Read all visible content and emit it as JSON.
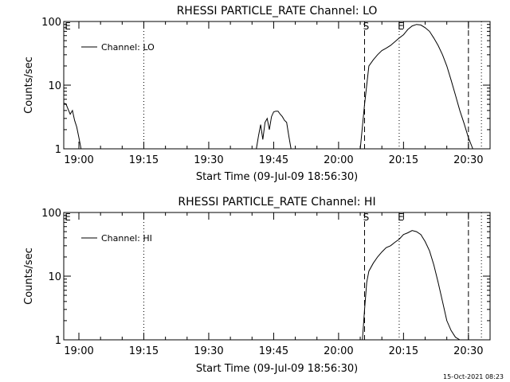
{
  "footer": {
    "stamp": "15-Oct-2021 08:23"
  },
  "chart_data": [
    {
      "type": "line",
      "title": "RHESSI PARTICLE_RATE Channel: LO",
      "xlabel": "Start Time (09-Jul-09 18:56:30)",
      "ylabel": "Counts/sec",
      "yscale": "log",
      "ylim": [
        1,
        100
      ],
      "xlim": [
        "18:56:30",
        "20:35:00"
      ],
      "x_ticks": [
        "19:00",
        "19:15",
        "19:30",
        "19:45",
        "20:00",
        "20:15",
        "20:30"
      ],
      "y_ticks": [
        "1",
        "10",
        "100"
      ],
      "legend": {
        "placement": "top-left",
        "entries": [
          "Channel: LO"
        ]
      },
      "grid": false,
      "markers": [
        {
          "time": "19:15",
          "style": "dotted",
          "label": ""
        },
        {
          "time": "20:06",
          "style": "dashed",
          "label": "S"
        },
        {
          "time": "20:14",
          "style": "dotted",
          "label": "E"
        },
        {
          "time": "20:30",
          "style": "dashed",
          "label": ""
        },
        {
          "time": "20:33",
          "style": "dotted",
          "label": ""
        }
      ],
      "edge_labels": [
        {
          "time": "18:56:30",
          "label": "E"
        }
      ],
      "series": [
        {
          "name": "Channel: LO",
          "segments": [
            {
              "x": [
                "18:56:30",
                "18:57:00",
                "18:57:30",
                "18:58:00",
                "18:58:30",
                "18:59:00",
                "18:59:30",
                "19:00:00",
                "19:00:30"
              ],
              "y": [
                5.2,
                5.1,
                4.2,
                3.5,
                4.0,
                2.8,
                2.2,
                1.5,
                1.0
              ]
            },
            {
              "x": [
                "19:41:00",
                "19:41:30",
                "19:42:00",
                "19:42:30",
                "19:43:00",
                "19:43:30",
                "19:44:00",
                "19:44:30",
                "19:45:00",
                "19:45:30",
                "19:46:00",
                "19:46:30",
                "19:47:00",
                "19:47:30",
                "19:48:00",
                "19:48:30",
                "19:49:00"
              ],
              "y": [
                1.0,
                1.6,
                2.4,
                1.4,
                2.6,
                3.0,
                2.0,
                3.2,
                3.8,
                3.9,
                3.9,
                3.5,
                3.2,
                2.8,
                2.6,
                1.6,
                1.0
              ]
            },
            {
              "x": [
                "20:05:00",
                "20:06:00",
                "20:07:00",
                "20:08:00",
                "20:09:00",
                "20:10:00",
                "20:11:00",
                "20:12:00",
                "20:13:00",
                "20:14:00",
                "20:15:00",
                "20:16:00",
                "20:17:00",
                "20:18:00",
                "20:19:00",
                "20:20:00",
                "20:21:00",
                "20:22:00",
                "20:23:00",
                "20:24:00",
                "20:25:00",
                "20:26:00",
                "20:27:00",
                "20:28:00",
                "20:29:00",
                "20:30:00",
                "20:31:00"
              ],
              "y": [
                1.0,
                5.0,
                20,
                25,
                30,
                35,
                38,
                42,
                48,
                55,
                62,
                75,
                85,
                90,
                88,
                80,
                70,
                55,
                42,
                30,
                20,
                12,
                7,
                4,
                2.5,
                1.5,
                1.0
              ]
            }
          ]
        }
      ]
    },
    {
      "type": "line",
      "title": "RHESSI PARTICLE_RATE Channel: HI",
      "xlabel": "Start Time (09-Jul-09 18:56:30)",
      "ylabel": "Counts/sec",
      "yscale": "log",
      "ylim": [
        1,
        100
      ],
      "xlim": [
        "18:56:30",
        "20:35:00"
      ],
      "x_ticks": [
        "19:00",
        "19:15",
        "19:30",
        "19:45",
        "20:00",
        "20:15",
        "20:30"
      ],
      "y_ticks": [
        "1",
        "10",
        "100"
      ],
      "legend": {
        "placement": "top-left",
        "entries": [
          "Channel: HI"
        ]
      },
      "grid": false,
      "markers": [
        {
          "time": "19:15",
          "style": "dotted",
          "label": ""
        },
        {
          "time": "20:06",
          "style": "dashed",
          "label": "S"
        },
        {
          "time": "20:14",
          "style": "dotted",
          "label": "E"
        },
        {
          "time": "20:30",
          "style": "dashed",
          "label": ""
        },
        {
          "time": "20:33",
          "style": "dotted",
          "label": ""
        }
      ],
      "edge_labels": [
        {
          "time": "18:56:30",
          "label": "E"
        }
      ],
      "series": [
        {
          "name": "Channel: HI",
          "segments": [
            {
              "x": [
                "20:05:30",
                "20:06:00",
                "20:06:30",
                "20:07:00",
                "20:08:00",
                "20:09:00",
                "20:10:00",
                "20:11:00",
                "20:12:00",
                "20:13:00",
                "20:14:00",
                "20:15:00",
                "20:16:00",
                "20:17:00",
                "20:18:00",
                "20:19:00",
                "20:20:00",
                "20:21:00",
                "20:22:00",
                "20:23:00",
                "20:24:00",
                "20:25:00",
                "20:26:00",
                "20:27:00",
                "20:28:00"
              ],
              "y": [
                1.0,
                3.0,
                8.0,
                12,
                16,
                20,
                24,
                28,
                30,
                34,
                38,
                45,
                48,
                52,
                50,
                45,
                35,
                25,
                15,
                8,
                4,
                2,
                1.4,
                1.1,
                1.0
              ]
            }
          ]
        }
      ]
    }
  ]
}
